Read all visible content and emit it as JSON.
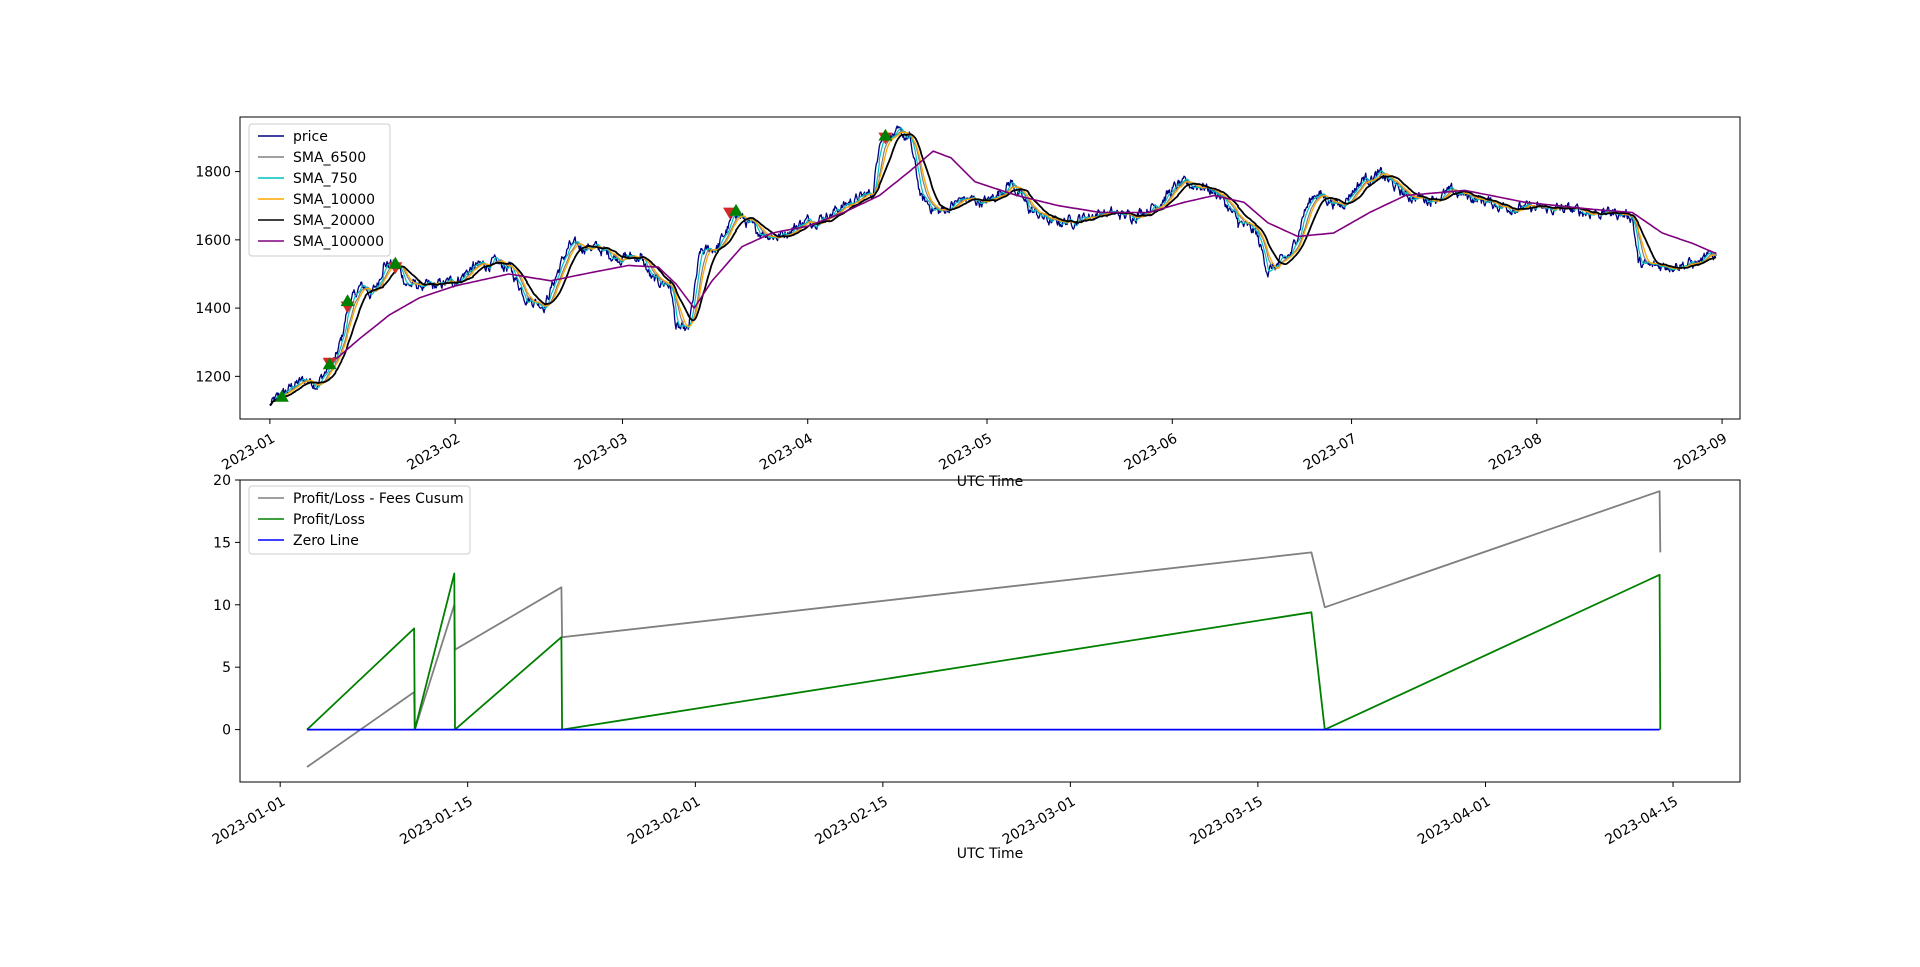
{
  "chart_data": [
    {
      "type": "line",
      "xlabel": "UTC Time",
      "x_ticks": [
        "2023-01",
        "2023-02",
        "2023-03",
        "2023-04",
        "2023-05",
        "2023-06",
        "2023-07",
        "2023-08",
        "2023-09"
      ],
      "y_ticks": [
        "1200",
        "1400",
        "1600",
        "1800"
      ],
      "xlim": [
        "2022-12-27",
        "2023-09-04"
      ],
      "ylim": [
        1075,
        1960
      ],
      "legend_position": "top-left",
      "series": [
        {
          "name": "price",
          "color": "#000080",
          "key": "price"
        },
        {
          "name": "SMA_6500",
          "color": "#808080",
          "key": "sma6500"
        },
        {
          "name": "SMA_750",
          "color": "#00bfbf",
          "key": "sma750"
        },
        {
          "name": "SMA_10000",
          "color": "#ffa500",
          "key": "sma10000"
        },
        {
          "name": "SMA_20000",
          "color": "#000000",
          "key": "sma20000"
        },
        {
          "name": "SMA_100000",
          "color": "#800080",
          "key": "sma100000"
        }
      ],
      "price_anchors": [
        [
          "2023-01-01",
          1115
        ],
        [
          "2023-01-03",
          1145
        ],
        [
          "2023-01-05",
          1175
        ],
        [
          "2023-01-07",
          1190
        ],
        [
          "2023-01-09",
          1180
        ],
        [
          "2023-01-11",
          1230
        ],
        [
          "2023-01-12",
          1250
        ],
        [
          "2023-01-13",
          1310
        ],
        [
          "2023-01-14",
          1400
        ],
        [
          "2023-01-16",
          1460
        ],
        [
          "2023-01-17",
          1460
        ],
        [
          "2023-01-18",
          1440
        ],
        [
          "2023-01-19",
          1470
        ],
        [
          "2023-01-20",
          1530
        ],
        [
          "2023-01-22",
          1530
        ],
        [
          "2023-01-24",
          1470
        ],
        [
          "2023-01-28",
          1460
        ],
        [
          "2023-02-01",
          1480
        ],
        [
          "2023-02-04",
          1520
        ],
        [
          "2023-02-07",
          1530
        ],
        [
          "2023-02-10",
          1520
        ],
        [
          "2023-02-13",
          1430
        ],
        [
          "2023-02-16",
          1410
        ],
        [
          "2023-02-18",
          1500
        ],
        [
          "2023-02-20",
          1580
        ],
        [
          "2023-02-24",
          1580
        ],
        [
          "2023-02-28",
          1550
        ],
        [
          "2023-03-04",
          1550
        ],
        [
          "2023-03-06",
          1480
        ],
        [
          "2023-03-09",
          1470
        ],
        [
          "2023-03-10",
          1340
        ],
        [
          "2023-03-12",
          1330
        ],
        [
          "2023-03-14",
          1560
        ],
        [
          "2023-03-17",
          1580
        ],
        [
          "2023-03-20",
          1680
        ],
        [
          "2023-03-23",
          1630
        ],
        [
          "2023-03-27",
          1610
        ],
        [
          "2023-03-31",
          1650
        ],
        [
          "2023-04-04",
          1670
        ],
        [
          "2023-04-08",
          1710
        ],
        [
          "2023-04-12",
          1740
        ],
        [
          "2023-04-13",
          1900
        ],
        [
          "2023-04-15",
          1910
        ],
        [
          "2023-04-18",
          1900
        ],
        [
          "2023-04-20",
          1720
        ],
        [
          "2023-04-23",
          1680
        ],
        [
          "2023-04-27",
          1720
        ],
        [
          "2023-05-01",
          1710
        ],
        [
          "2023-05-05",
          1770
        ],
        [
          "2023-05-08",
          1690
        ],
        [
          "2023-05-12",
          1650
        ],
        [
          "2023-05-16",
          1660
        ],
        [
          "2023-05-20",
          1680
        ],
        [
          "2023-05-25",
          1670
        ],
        [
          "2023-05-29",
          1700
        ],
        [
          "2023-06-02",
          1760
        ],
        [
          "2023-06-06",
          1760
        ],
        [
          "2023-06-09",
          1730
        ],
        [
          "2023-06-12",
          1650
        ],
        [
          "2023-06-15",
          1620
        ],
        [
          "2023-06-17",
          1510
        ],
        [
          "2023-06-19",
          1530
        ],
        [
          "2023-06-21",
          1560
        ],
        [
          "2023-06-23",
          1680
        ],
        [
          "2023-06-25",
          1740
        ],
        [
          "2023-06-29",
          1700
        ],
        [
          "2023-07-03",
          1780
        ],
        [
          "2023-07-06",
          1790
        ],
        [
          "2023-07-10",
          1730
        ],
        [
          "2023-07-14",
          1720
        ],
        [
          "2023-07-18",
          1740
        ],
        [
          "2023-07-22",
          1720
        ],
        [
          "2023-07-26",
          1700
        ],
        [
          "2023-08-01",
          1690
        ],
        [
          "2023-08-05",
          1690
        ],
        [
          "2023-08-10",
          1680
        ],
        [
          "2023-08-14",
          1680
        ],
        [
          "2023-08-17",
          1670
        ],
        [
          "2023-08-18",
          1530
        ],
        [
          "2023-08-20",
          1520
        ],
        [
          "2023-08-24",
          1530
        ],
        [
          "2023-08-28",
          1530
        ],
        [
          "2023-08-29",
          1540
        ],
        [
          "2023-08-31",
          1560
        ]
      ],
      "sma100000_anchors": [
        [
          "2023-01-12",
          1250
        ],
        [
          "2023-01-16",
          1310
        ],
        [
          "2023-01-21",
          1380
        ],
        [
          "2023-01-26",
          1430
        ],
        [
          "2023-02-01",
          1465
        ],
        [
          "2023-02-10",
          1500
        ],
        [
          "2023-02-17",
          1480
        ],
        [
          "2023-02-24",
          1505
        ],
        [
          "2023-03-02",
          1525
        ],
        [
          "2023-03-07",
          1520
        ],
        [
          "2023-03-10",
          1470
        ],
        [
          "2023-03-13",
          1400
        ],
        [
          "2023-03-16",
          1480
        ],
        [
          "2023-03-21",
          1580
        ],
        [
          "2023-03-26",
          1620
        ],
        [
          "2023-04-01",
          1640
        ],
        [
          "2023-04-07",
          1680
        ],
        [
          "2023-04-13",
          1730
        ],
        [
          "2023-04-18",
          1800
        ],
        [
          "2023-04-22",
          1860
        ],
        [
          "2023-04-25",
          1840
        ],
        [
          "2023-04-29",
          1770
        ],
        [
          "2023-05-06",
          1730
        ],
        [
          "2023-05-13",
          1700
        ],
        [
          "2023-05-20",
          1680
        ],
        [
          "2023-05-28",
          1680
        ],
        [
          "2023-06-03",
          1710
        ],
        [
          "2023-06-08",
          1730
        ],
        [
          "2023-06-13",
          1710
        ],
        [
          "2023-06-17",
          1650
        ],
        [
          "2023-06-22",
          1610
        ],
        [
          "2023-06-28",
          1620
        ],
        [
          "2023-07-04",
          1680
        ],
        [
          "2023-07-10",
          1730
        ],
        [
          "2023-07-20",
          1745
        ],
        [
          "2023-07-30",
          1710
        ],
        [
          "2023-08-10",
          1690
        ],
        [
          "2023-08-17",
          1680
        ],
        [
          "2023-08-22",
          1620
        ],
        [
          "2023-08-27",
          1590
        ],
        [
          "2023-08-31",
          1560
        ]
      ],
      "markers": [
        {
          "x": "2023-01-03",
          "y": 1140,
          "kind": "buy"
        },
        {
          "x": "2023-01-11",
          "y": 1240,
          "kind": "sell"
        },
        {
          "x": "2023-01-11",
          "y": 1235,
          "kind": "buy"
        },
        {
          "x": "2023-01-14",
          "y": 1405,
          "kind": "sell"
        },
        {
          "x": "2023-01-14",
          "y": 1420,
          "kind": "buy"
        },
        {
          "x": "2023-01-22",
          "y": 1520,
          "kind": "sell"
        },
        {
          "x": "2023-01-22",
          "y": 1530,
          "kind": "buy"
        },
        {
          "x": "2023-03-19",
          "y": 1680,
          "kind": "sell"
        },
        {
          "x": "2023-03-20",
          "y": 1685,
          "kind": "buy"
        },
        {
          "x": "2023-04-14",
          "y": 1900,
          "kind": "sell"
        },
        {
          "x": "2023-04-14",
          "y": 1905,
          "kind": "buy"
        }
      ]
    },
    {
      "type": "line",
      "xlabel": "UTC Time",
      "x_ticks": [
        "2023-01-01",
        "2023-01-15",
        "2023-02-01",
        "2023-02-15",
        "2023-03-01",
        "2023-03-15",
        "2023-04-01",
        "2023-04-15"
      ],
      "y_ticks": [
        "0",
        "5",
        "10",
        "15",
        "20"
      ],
      "xlim": [
        "2022-12-29",
        "2023-04-20"
      ],
      "ylim": [
        -4.2,
        20.0
      ],
      "legend_position": "top-left",
      "series": [
        {
          "name": "Profit/Loss - Fees Cusum",
          "color": "#808080",
          "points": [
            [
              "2023-01-03",
              -3.0
            ],
            [
              "2023-01-11",
              3.0
            ],
            [
              "2023-01-11",
              0.0
            ],
            [
              "2023-01-14",
              10.0
            ],
            [
              "2023-01-14",
              6.4
            ],
            [
              "2023-01-22",
              11.4
            ],
            [
              "2023-01-22",
              7.4
            ],
            [
              "2023-03-19",
              14.2
            ],
            [
              "2023-03-20",
              9.8
            ],
            [
              "2023-04-14",
              19.1
            ],
            [
              "2023-04-14",
              14.2
            ]
          ]
        },
        {
          "name": "Profit/Loss",
          "color": "#008000",
          "points": [
            [
              "2023-01-03",
              0.0
            ],
            [
              "2023-01-11",
              8.1
            ],
            [
              "2023-01-11",
              0.0
            ],
            [
              "2023-01-14",
              12.5
            ],
            [
              "2023-01-14",
              0.0
            ],
            [
              "2023-01-22",
              7.4
            ],
            [
              "2023-01-22",
              0.0
            ],
            [
              "2023-03-19",
              9.4
            ],
            [
              "2023-03-20",
              0.0
            ],
            [
              "2023-04-14",
              12.4
            ],
            [
              "2023-04-14",
              0.0
            ]
          ]
        },
        {
          "name": "Zero Line",
          "color": "#0000ff",
          "points": [
            [
              "2023-01-03",
              0.0
            ],
            [
              "2023-04-14",
              0.0
            ]
          ]
        }
      ]
    }
  ]
}
